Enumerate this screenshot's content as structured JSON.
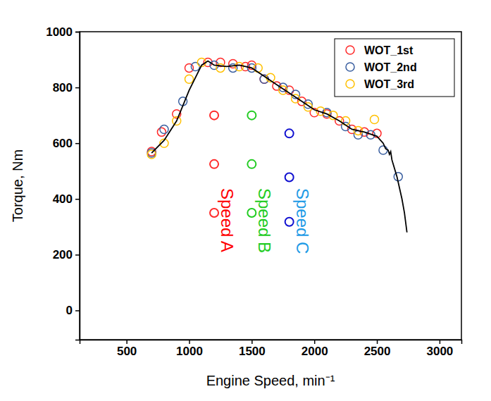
{
  "chart_data": {
    "type": "scatter",
    "x_label": "Engine Speed, min⁻¹",
    "y_label": "Torque, Nm",
    "xlim": [
      125,
      3175
    ],
    "xticks": [
      500,
      1000,
      1500,
      2000,
      2500,
      3000
    ],
    "ylim": [
      -105,
      1000
    ],
    "yticks": [
      0,
      200,
      400,
      600,
      800,
      1000
    ],
    "grid": false,
    "legend": "upper right",
    "series": [
      {
        "name": "WOT_1st",
        "color": "#ff2a2a",
        "marker": "open-circle",
        "x": [
          700,
          780,
          900,
          1000,
          1150,
          1250,
          1350,
          1450,
          1500,
          1600,
          1700,
          1800,
          1900,
          2000,
          2100,
          2200,
          2300,
          2400,
          2500
        ],
        "values": [
          570,
          640,
          705,
          870,
          890,
          890,
          885,
          875,
          880,
          830,
          805,
          790,
          750,
          710,
          705,
          680,
          650,
          640,
          635
        ]
      },
      {
        "name": "WOT_2nd",
        "color": "#3a5fa0",
        "marker": "open-circle",
        "x": [
          700,
          800,
          950,
          1050,
          1200,
          1350,
          1500,
          1600,
          1750,
          1850,
          1950,
          2100,
          2250,
          2350,
          2450,
          2550,
          2670
        ],
        "values": [
          565,
          650,
          750,
          875,
          880,
          870,
          870,
          830,
          800,
          775,
          740,
          710,
          660,
          630,
          630,
          575,
          480
        ]
      },
      {
        "name": "WOT_3rd",
        "color": "#ffc000",
        "marker": "open-circle",
        "x": [
          700,
          800,
          900,
          1000,
          1100,
          1250,
          1400,
          1550,
          1650,
          1750,
          1850,
          1950,
          2050,
          2150,
          2250,
          2350,
          2480
        ],
        "values": [
          560,
          600,
          680,
          830,
          890,
          870,
          875,
          870,
          835,
          790,
          760,
          730,
          715,
          700,
          680,
          645,
          685
        ]
      }
    ],
    "line": {
      "color": "#000000",
      "line_style": "solid",
      "x": [
        700,
        800,
        900,
        1000,
        1100,
        1150,
        1200,
        1300,
        1400,
        1500,
        1600,
        1700,
        1800,
        1900,
        2000,
        2100,
        2200,
        2300,
        2400,
        2500,
        2550,
        2570,
        2590,
        2600,
        2610,
        2620,
        2640,
        2660,
        2680,
        2700,
        2720,
        2740
      ],
      "values": [
        565,
        610,
        680,
        790,
        880,
        895,
        880,
        875,
        880,
        870,
        840,
        810,
        780,
        750,
        720,
        705,
        680,
        650,
        640,
        625,
        600,
        580,
        575,
        560,
        570,
        540,
        510,
        480,
        440,
        400,
        350,
        280
      ]
    },
    "speeds": [
      {
        "name": "Speed A",
        "color": "#ff2a2a",
        "text_color": "#ff0000",
        "x": 1200,
        "values": [
          700,
          525,
          350
        ]
      },
      {
        "name": "Speed B",
        "color": "#22cc22",
        "text_color": "#22cc22",
        "x": 1500,
        "values": [
          700,
          525,
          350
        ]
      },
      {
        "name": "Speed C",
        "color": "#1010d0",
        "text_color": "#1e9be6",
        "x": 1800,
        "values": [
          635,
          478,
          318
        ]
      }
    ]
  }
}
